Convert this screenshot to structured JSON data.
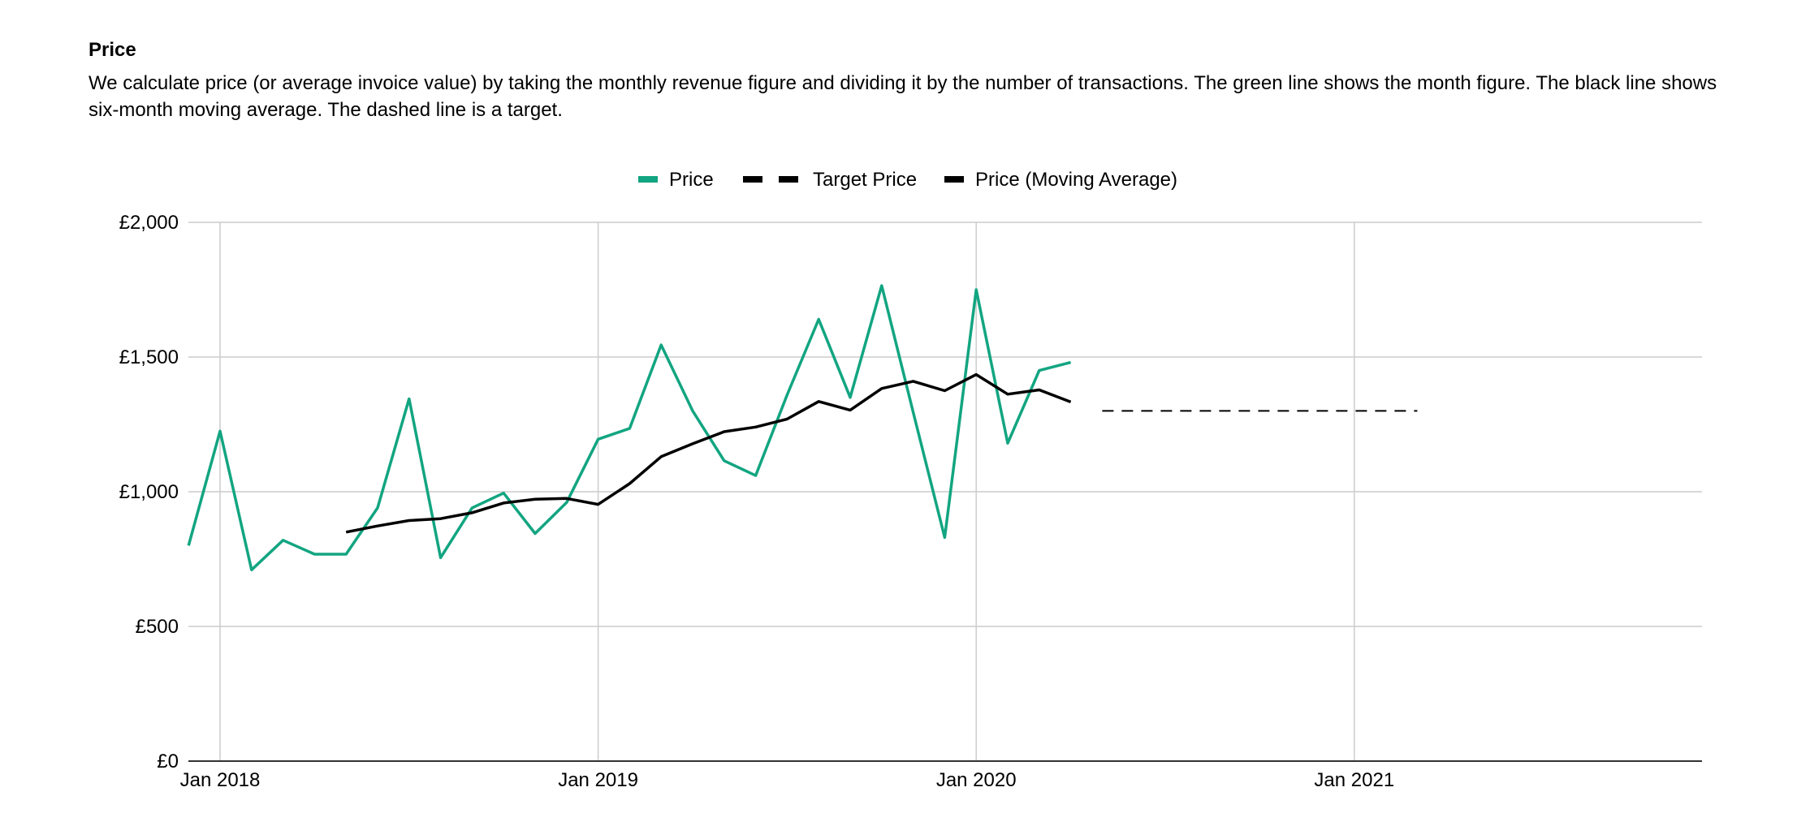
{
  "heading": "Price",
  "description": "We calculate price (or average invoice value) by taking the monthly revenue figure and dividing it by the number of transactions. The green line shows the month figure. The black line shows six-month moving average. The dashed line is a target.",
  "colors": {
    "price": "#12a581",
    "target": "#000000",
    "moving_average": "#000000",
    "grid": "#cccccc",
    "axis": "#333333"
  },
  "chart_data": {
    "type": "line",
    "title": "",
    "xlabel": "",
    "ylabel": "",
    "ylim": [
      0,
      2000
    ],
    "xlim": [
      "2017-12",
      "2021-12"
    ],
    "grid": true,
    "legend_position": "top",
    "y_ticks": [
      {
        "value": 0,
        "label": "£0"
      },
      {
        "value": 500,
        "label": "£500"
      },
      {
        "value": 1000,
        "label": "£1,000"
      },
      {
        "value": 1500,
        "label": "£1,500"
      },
      {
        "value": 2000,
        "label": "£2,000"
      }
    ],
    "x_ticks": [
      {
        "value": "2018-01",
        "label": "Jan 2018"
      },
      {
        "value": "2019-01",
        "label": "Jan 2019"
      },
      {
        "value": "2020-01",
        "label": "Jan 2020"
      },
      {
        "value": "2021-01",
        "label": "Jan 2021"
      }
    ],
    "series": [
      {
        "name": "Price",
        "style": "solid",
        "x": [
          "2017-12",
          "2018-01",
          "2018-02",
          "2018-03",
          "2018-04",
          "2018-05",
          "2018-06",
          "2018-07",
          "2018-08",
          "2018-09",
          "2018-10",
          "2018-11",
          "2018-12",
          "2019-01",
          "2019-02",
          "2019-03",
          "2019-04",
          "2019-05",
          "2019-06",
          "2019-07",
          "2019-08",
          "2019-09",
          "2019-10",
          "2019-11",
          "2019-12",
          "2020-01",
          "2020-02",
          "2020-03",
          "2020-04"
        ],
        "values": [
          800,
          1225,
          710,
          820,
          768,
          768,
          940,
          1345,
          755,
          940,
          995,
          845,
          960,
          1195,
          1235,
          1545,
          1300,
          1115,
          1060,
          1360,
          1640,
          1350,
          1765,
          1295,
          830,
          1750,
          1180,
          1450,
          1480
        ]
      },
      {
        "name": "Target Price",
        "style": "dashed",
        "x": [
          "2020-05",
          "2021-03"
        ],
        "values": [
          1300,
          1300
        ]
      },
      {
        "name": "Price (Moving Average)",
        "style": "solid",
        "x": [
          "2018-05",
          "2018-06",
          "2018-07",
          "2018-08",
          "2018-09",
          "2018-10",
          "2018-11",
          "2018-12",
          "2019-01",
          "2019-02",
          "2019-03",
          "2019-04",
          "2019-05",
          "2019-06",
          "2019-07",
          "2019-08",
          "2019-09",
          "2019-10",
          "2019-11",
          "2019-12",
          "2020-01",
          "2020-02",
          "2020-03",
          "2020-04"
        ],
        "values": [
          850,
          873,
          893,
          900,
          922,
          958,
          972,
          975,
          953,
          1030,
          1130,
          1178,
          1223,
          1240,
          1270,
          1335,
          1303,
          1383,
          1410,
          1375,
          1435,
          1362,
          1378,
          1333
        ]
      }
    ]
  }
}
